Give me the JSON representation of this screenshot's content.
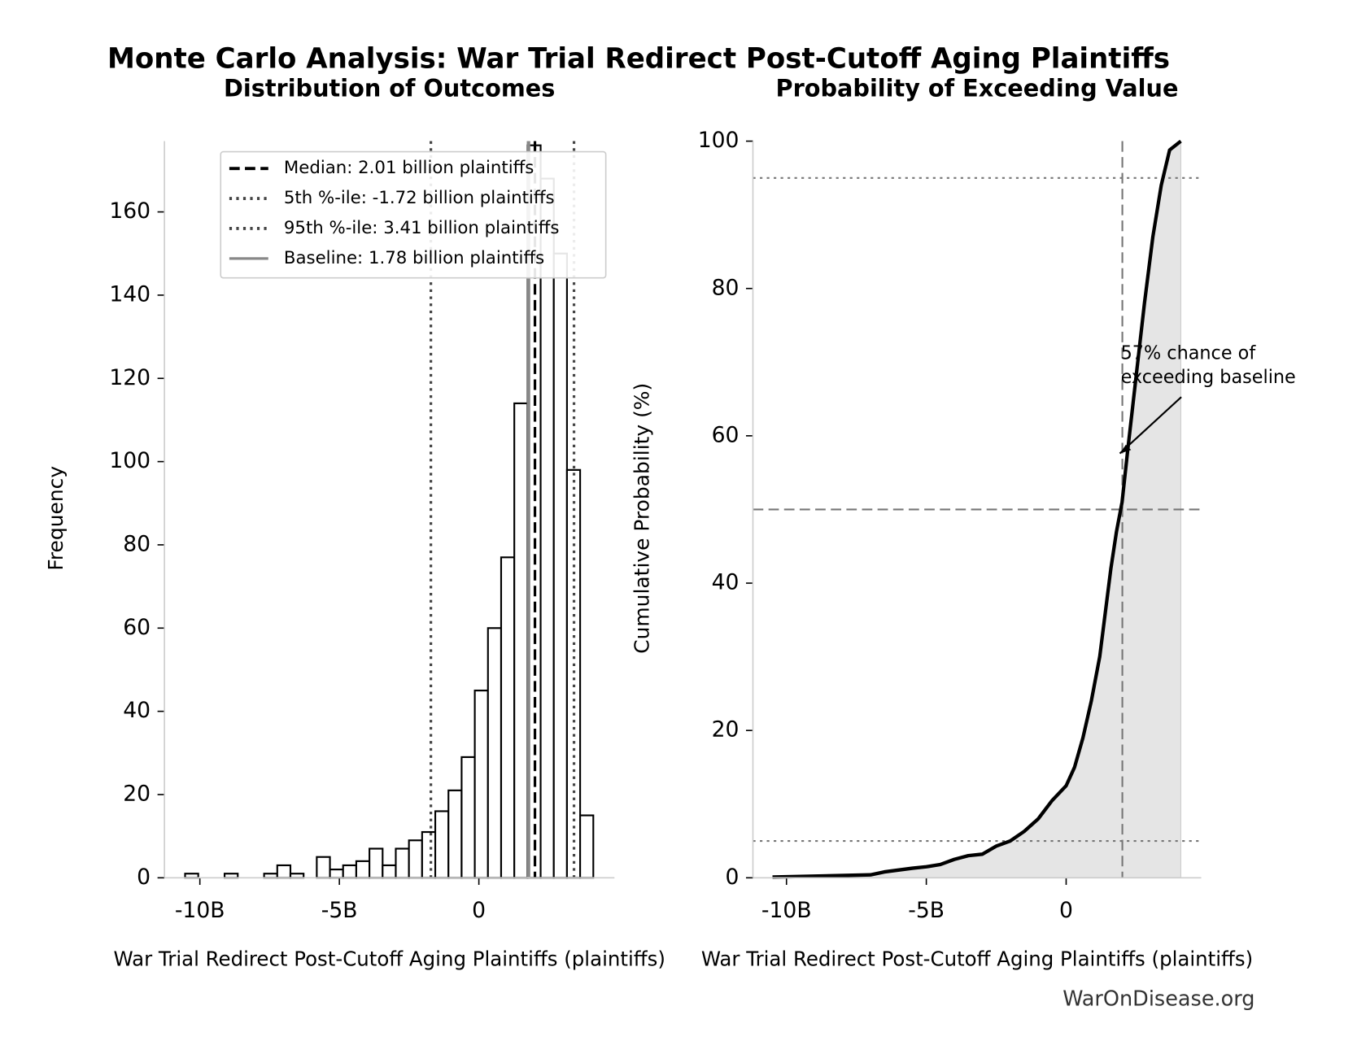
{
  "title": "Monte Carlo Analysis: War Trial Redirect Post-Cutoff Aging Plaintiffs",
  "footer": "WarOnDisease.org",
  "chart_data": [
    {
      "type": "histogram",
      "title": "Distribution of Outcomes",
      "x_label": "War Trial Redirect Post-Cutoff Aging Plaintiffs (plaintiffs)",
      "y_label": "Frequency",
      "bins": [
        -10530000000,
        -10058000000,
        -9586000000,
        -9114000000,
        -8642000000,
        -8170000000,
        -7698000000,
        -7226000000,
        -6754000000,
        -6282000000,
        -5810000000,
        -5338000000,
        -4866000000,
        -4394000000,
        -3922000000,
        -3450000000,
        -2978000000,
        -2506000000,
        -2034000000,
        -1562000000,
        -1090000000,
        -618000000,
        -146000000,
        326000000,
        798000000,
        1270000000,
        1742000000,
        2214000000,
        2686000000,
        3158000000,
        3630000000,
        4102000000
      ],
      "values": [
        1,
        0,
        0,
        1,
        0,
        0,
        1,
        3,
        1,
        0,
        5,
        2,
        3,
        4,
        7,
        3,
        7,
        9,
        11,
        16,
        21,
        29,
        45,
        60,
        77,
        114,
        176,
        168,
        150,
        98,
        15
      ],
      "color": "#ffffff",
      "edge_color": "#000000",
      "xlim": [
        -11270000000,
        4860000000
      ],
      "ylim": [
        0,
        177
      ],
      "xticks": [
        {
          "value": -10000000000,
          "label": "-10B"
        },
        {
          "value": -5000000000,
          "label": "-5B"
        },
        0
      ],
      "yticks": [
        0,
        20,
        40,
        60,
        80,
        100,
        120,
        140,
        160
      ],
      "lines": [
        {
          "name": "Baseline: 1.78 billion plaintiffs",
          "x": 1780000000,
          "color": "#888888",
          "style": "solid"
        },
        {
          "name": "Median: 2.01 billion plaintiffs",
          "x": 2010000000,
          "color": "#000000",
          "style": "dashed"
        },
        {
          "name": "5th %-ile: -1.72 billion plaintiffs",
          "x": -1720000000,
          "color": "#444444",
          "style": "dotted"
        },
        {
          "name": "95th %-ile: 3.41 billion plaintiffs",
          "x": 3410000000,
          "color": "#444444",
          "style": "dotted"
        }
      ],
      "legend_order": [
        1,
        2,
        3,
        0
      ],
      "legend": "upper right"
    },
    {
      "type": "line",
      "title": "Probability of Exceeding Value",
      "x_label": "War Trial Redirect Post-Cutoff Aging Plaintiffs (plaintiffs)",
      "y_label": "Cumulative Probability (%)",
      "x": [
        -10500000000,
        -7000000000,
        -6500000000,
        -5500000000,
        -5000000000,
        -4500000000,
        -4000000000,
        -3500000000,
        -3000000000,
        -2500000000,
        -2000000000,
        -1500000000,
        -1000000000,
        -500000000,
        0,
        300000000,
        600000000,
        900000000,
        1200000000,
        1400000000,
        1600000000,
        1800000000,
        2000000000,
        2200000000,
        2500000000,
        2800000000,
        3100000000,
        3400000000,
        3700000000,
        4100000000
      ],
      "values": [
        0.1,
        0.4,
        0.8,
        1.3,
        1.5,
        1.8,
        2.5,
        3,
        3.2,
        4.3,
        5,
        6.3,
        8,
        10.5,
        12.5,
        15,
        19,
        24,
        30,
        36,
        42,
        47,
        51,
        58,
        68,
        78,
        87,
        94,
        98.8,
        100
      ],
      "color": "#000000",
      "fill": "#e5e5e5",
      "xlim": [
        -11200000000,
        4830000000
      ],
      "ylim": [
        0,
        100
      ],
      "xticks": [
        {
          "value": -10000000000,
          "label": "-10B"
        },
        {
          "value": -5000000000,
          "label": "-5B"
        },
        0
      ],
      "yticks": [
        0,
        20,
        40,
        60,
        80,
        100
      ],
      "hlines": [
        {
          "y": 5,
          "style": "dotted"
        },
        {
          "y": 95,
          "style": "dotted"
        },
        {
          "y": 50,
          "style": "dashed"
        }
      ],
      "vlines": [
        {
          "x": 2010000000,
          "style": "dashed"
        }
      ],
      "annotation": {
        "text": [
          "57% chance of",
          "exceeding baseline"
        ],
        "x": 1920000000,
        "y": 57.6
      }
    }
  ]
}
